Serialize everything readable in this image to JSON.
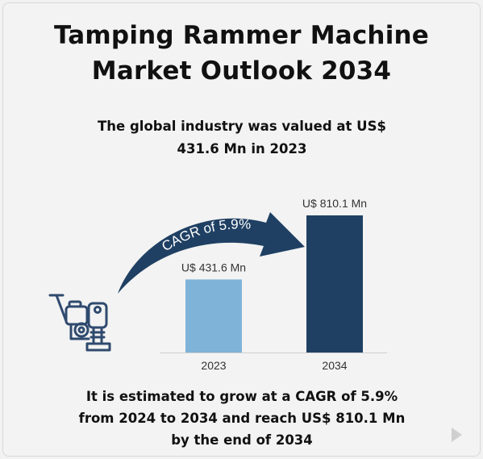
{
  "title": {
    "line1": "Tamping Rammer Machine",
    "line2": "Market Outlook 2034"
  },
  "subtitle": {
    "line1": "The global industry was valued at US$",
    "line2": "431.6 Mn in 2023"
  },
  "footer": {
    "line1": "It is estimated to grow at a CAGR of 5.9%",
    "line2": "from 2024 to 2034 and reach US$ 810.1 Mn",
    "line3": "by the end of 2034"
  },
  "colors": {
    "bar_2023": "#7fb3d8",
    "bar_2034": "#1f4063",
    "arrow": "#1f4063",
    "icon": "#2f4a6e"
  },
  "icons": [
    "tamping-rammer-machine-icon",
    "play-icon"
  ],
  "chart_data": {
    "type": "bar",
    "categories": [
      "2023",
      "2034"
    ],
    "values": [
      431.6,
      810.1
    ],
    "data_labels": [
      "U$ 431.6 Mn",
      "U$ 810.1 Mn"
    ],
    "annotation": "CAGR of 5.9%",
    "ylim": [
      0,
      810.1
    ],
    "grid": false
  }
}
